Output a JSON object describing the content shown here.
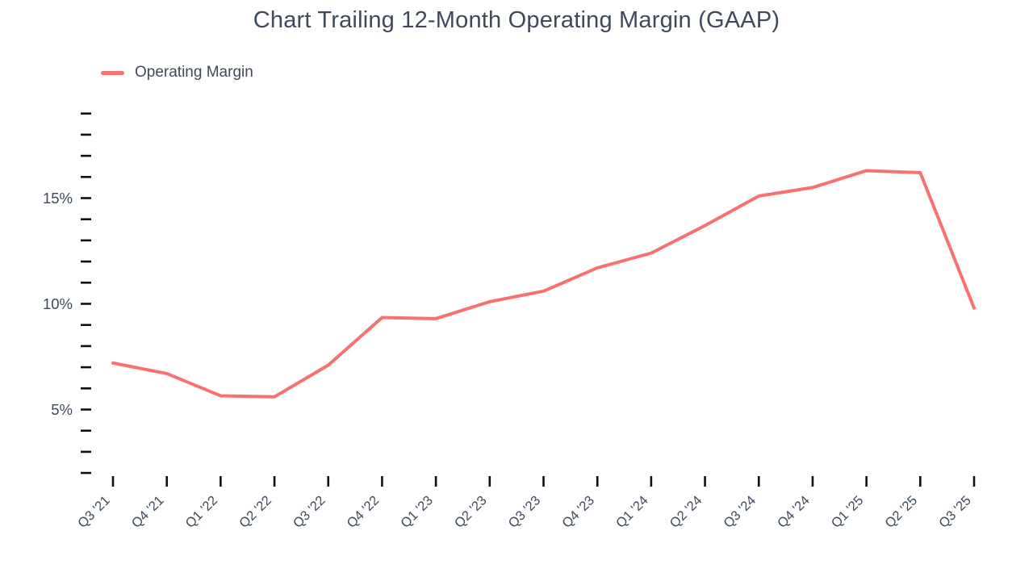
{
  "chart_data": {
    "type": "line",
    "title": "Chart Trailing 12-Month Operating Margin (GAAP)",
    "xlabel": "",
    "ylabel": "",
    "grid": false,
    "legend_position": "top-left",
    "categories": [
      "Q3 '21",
      "Q4 '21",
      "Q1 '22",
      "Q2 '22",
      "Q3 '22",
      "Q4 '22",
      "Q1 '23",
      "Q2 '23",
      "Q3 '23",
      "Q4 '23",
      "Q1 '24",
      "Q2 '24",
      "Q3 '24",
      "Q4 '24",
      "Q1 '25",
      "Q2 '25",
      "Q3 '25"
    ],
    "series": [
      {
        "name": "Operating Margin",
        "color": "#f87171",
        "values": [
          7.2,
          6.7,
          5.65,
          5.6,
          7.1,
          9.35,
          9.3,
          10.1,
          10.6,
          11.7,
          12.4,
          13.7,
          15.1,
          15.5,
          16.3,
          16.2,
          9.8
        ]
      }
    ],
    "yaxis": {
      "unit": "%",
      "ylim": [
        1.5,
        19.5
      ],
      "tick_min": 2,
      "tick_max": 19,
      "tick_step": 1,
      "labeled_ticks": [
        {
          "value": 5,
          "label": "5%"
        },
        {
          "value": 10,
          "label": "10%"
        },
        {
          "value": 15,
          "label": "15%"
        }
      ]
    },
    "colors": {
      "line": "#f87171",
      "text": "#3e4a5b",
      "tick": "#111111"
    }
  }
}
